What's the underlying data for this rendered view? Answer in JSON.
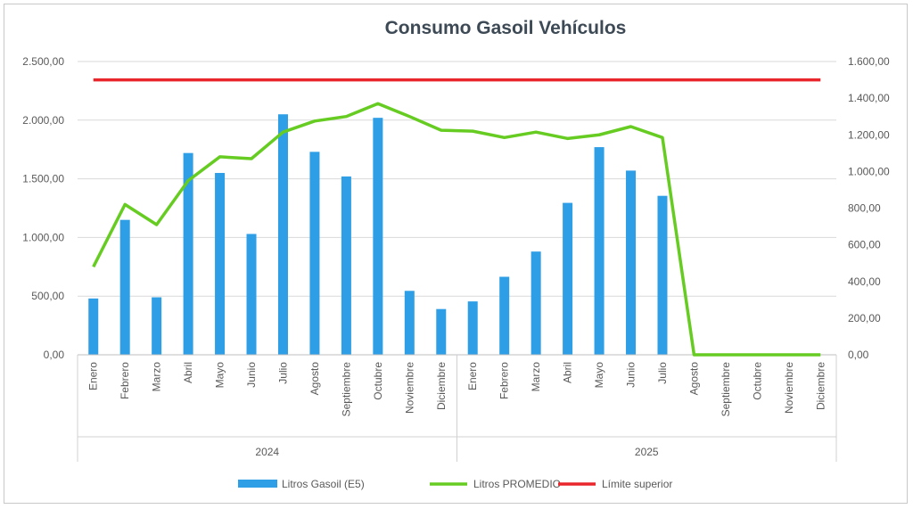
{
  "chart_data": {
    "type": "bar",
    "title": "Consumo Gasoil Vehículos",
    "categories": [
      "Enero",
      "Febrero",
      "Marzo",
      "Abril",
      "Mayo",
      "Junio",
      "Julio",
      "Agosto",
      "Septiembre",
      "Octubre",
      "Noviembre",
      "Diciembre",
      "Enero",
      "Febrero",
      "Marzo",
      "Abril",
      "Mayo",
      "Junio",
      "Julio",
      "Agosto",
      "Septiembre",
      "Octubre",
      "Noviembre",
      "Diciembre"
    ],
    "groups": [
      {
        "label": "2024",
        "start": 0,
        "end": 11
      },
      {
        "label": "2025",
        "start": 12,
        "end": 23
      }
    ],
    "y_left": {
      "ylim": [
        0,
        2500
      ],
      "ticks": [
        0,
        500,
        1000,
        1500,
        2000,
        2500
      ],
      "tick_labels": [
        "0,00",
        "500,00",
        "1.000,00",
        "1.500,00",
        "2.000,00",
        "2.500,00"
      ]
    },
    "y_right": {
      "ylim": [
        0,
        1600
      ],
      "ticks": [
        0,
        200,
        400,
        600,
        800,
        1000,
        1200,
        1400,
        1600
      ],
      "tick_labels": [
        "0,00",
        "200,00",
        "400,00",
        "600,00",
        "800,00",
        "1.000,00",
        "1.200,00",
        "1.400,00",
        "1.600,00"
      ]
    },
    "series": [
      {
        "name": "Litros Gasoil (E5)",
        "kind": "bar",
        "axis": "left",
        "color": "#2e9fe6",
        "values": [
          480,
          1150,
          490,
          1720,
          1550,
          1030,
          2050,
          1730,
          1520,
          2020,
          545,
          390,
          455,
          665,
          880,
          1295,
          1770,
          1570,
          1355,
          null,
          null,
          null,
          null,
          null
        ]
      },
      {
        "name": "Litros PROMEDIO",
        "kind": "line",
        "axis": "right",
        "color": "#66cc22",
        "values": [
          480,
          820,
          710,
          950,
          1080,
          1070,
          1215,
          1275,
          1300,
          1370,
          1300,
          1225,
          1220,
          1185,
          1215,
          1180,
          1200,
          1245,
          1185,
          0,
          0,
          0,
          0,
          0
        ]
      },
      {
        "name": "Límite superior",
        "kind": "line",
        "axis": "right",
        "color": "#e8262b",
        "values": [
          1500,
          1500,
          1500,
          1500,
          1500,
          1500,
          1500,
          1500,
          1500,
          1500,
          1500,
          1500,
          1500,
          1500,
          1500,
          1500,
          1500,
          1500,
          1500,
          1500,
          1500,
          1500,
          1500,
          1500
        ]
      }
    ],
    "legend_position": "bottom",
    "grid": true
  }
}
